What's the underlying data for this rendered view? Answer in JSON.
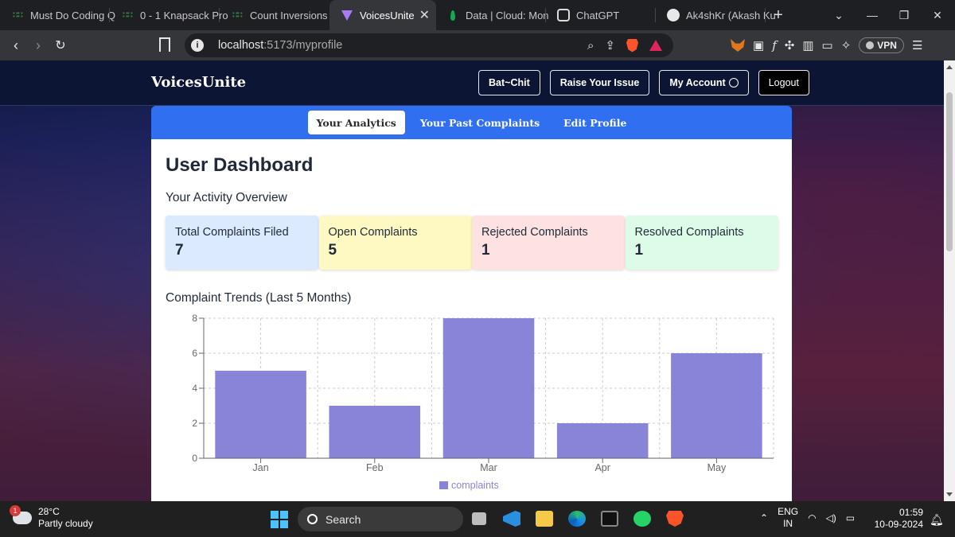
{
  "browser": {
    "tabs": [
      {
        "title": "Must Do Coding Q",
        "icon": "geeksforgeeks-icon"
      },
      {
        "title": "0 - 1 Knapsack Pro",
        "icon": "geeksforgeeks-icon"
      },
      {
        "title": "Count Inversions |",
        "icon": "geeksforgeeks-icon"
      },
      {
        "title": "VoicesUnite",
        "icon": "vite-icon",
        "active": true
      },
      {
        "title": "Data | Cloud: Mon",
        "icon": "mongodb-icon"
      },
      {
        "title": "ChatGPT",
        "icon": "chatgpt-icon"
      },
      {
        "title": "Ak4shKr (Akash Ku",
        "icon": "github-icon"
      }
    ],
    "url_host": "localhost",
    "url_path": ":5173/myprofile",
    "vpn_label": "VPN"
  },
  "site": {
    "brand": "VoicesUnite",
    "nav": {
      "chat": "Bat~Chit",
      "raise": "Raise Your Issue",
      "account": "My Account",
      "logout": "Logout"
    },
    "subtabs": [
      "Your Analytics",
      "Your Past Complaints",
      "Edit Profile"
    ]
  },
  "dashboard": {
    "title": "User Dashboard",
    "overview_heading": "Your Activity Overview",
    "stats": [
      {
        "label": "Total Complaints Filed",
        "value": "7",
        "bg": "#dbeafe"
      },
      {
        "label": "Open Complaints",
        "value": "5",
        "bg": "#fef9c3"
      },
      {
        "label": "Rejected Complaints",
        "value": "1",
        "bg": "#fee2e2"
      },
      {
        "label": "Resolved Complaints",
        "value": "1",
        "bg": "#dcfce7"
      }
    ],
    "trend_heading": "Complaint Trends (Last 5 Months)"
  },
  "chart_data": {
    "type": "bar",
    "title": "",
    "categories": [
      "Jan",
      "Feb",
      "Mar",
      "Apr",
      "May"
    ],
    "series": [
      {
        "name": "complaints",
        "values": [
          5,
          3,
          8,
          2,
          6
        ],
        "color": "#8884d8"
      }
    ],
    "yticks": [
      0,
      2,
      4,
      6,
      8
    ],
    "ylim": [
      0,
      8
    ],
    "grid": true,
    "legend": "bottom"
  },
  "taskbar": {
    "temperature": "28°C",
    "weather": "Partly cloudy",
    "weather_badge": "1",
    "search_placeholder": "Search",
    "lang_top": "ENG",
    "lang_bottom": "IN",
    "time": "01:59",
    "date": "10-09-2024"
  }
}
